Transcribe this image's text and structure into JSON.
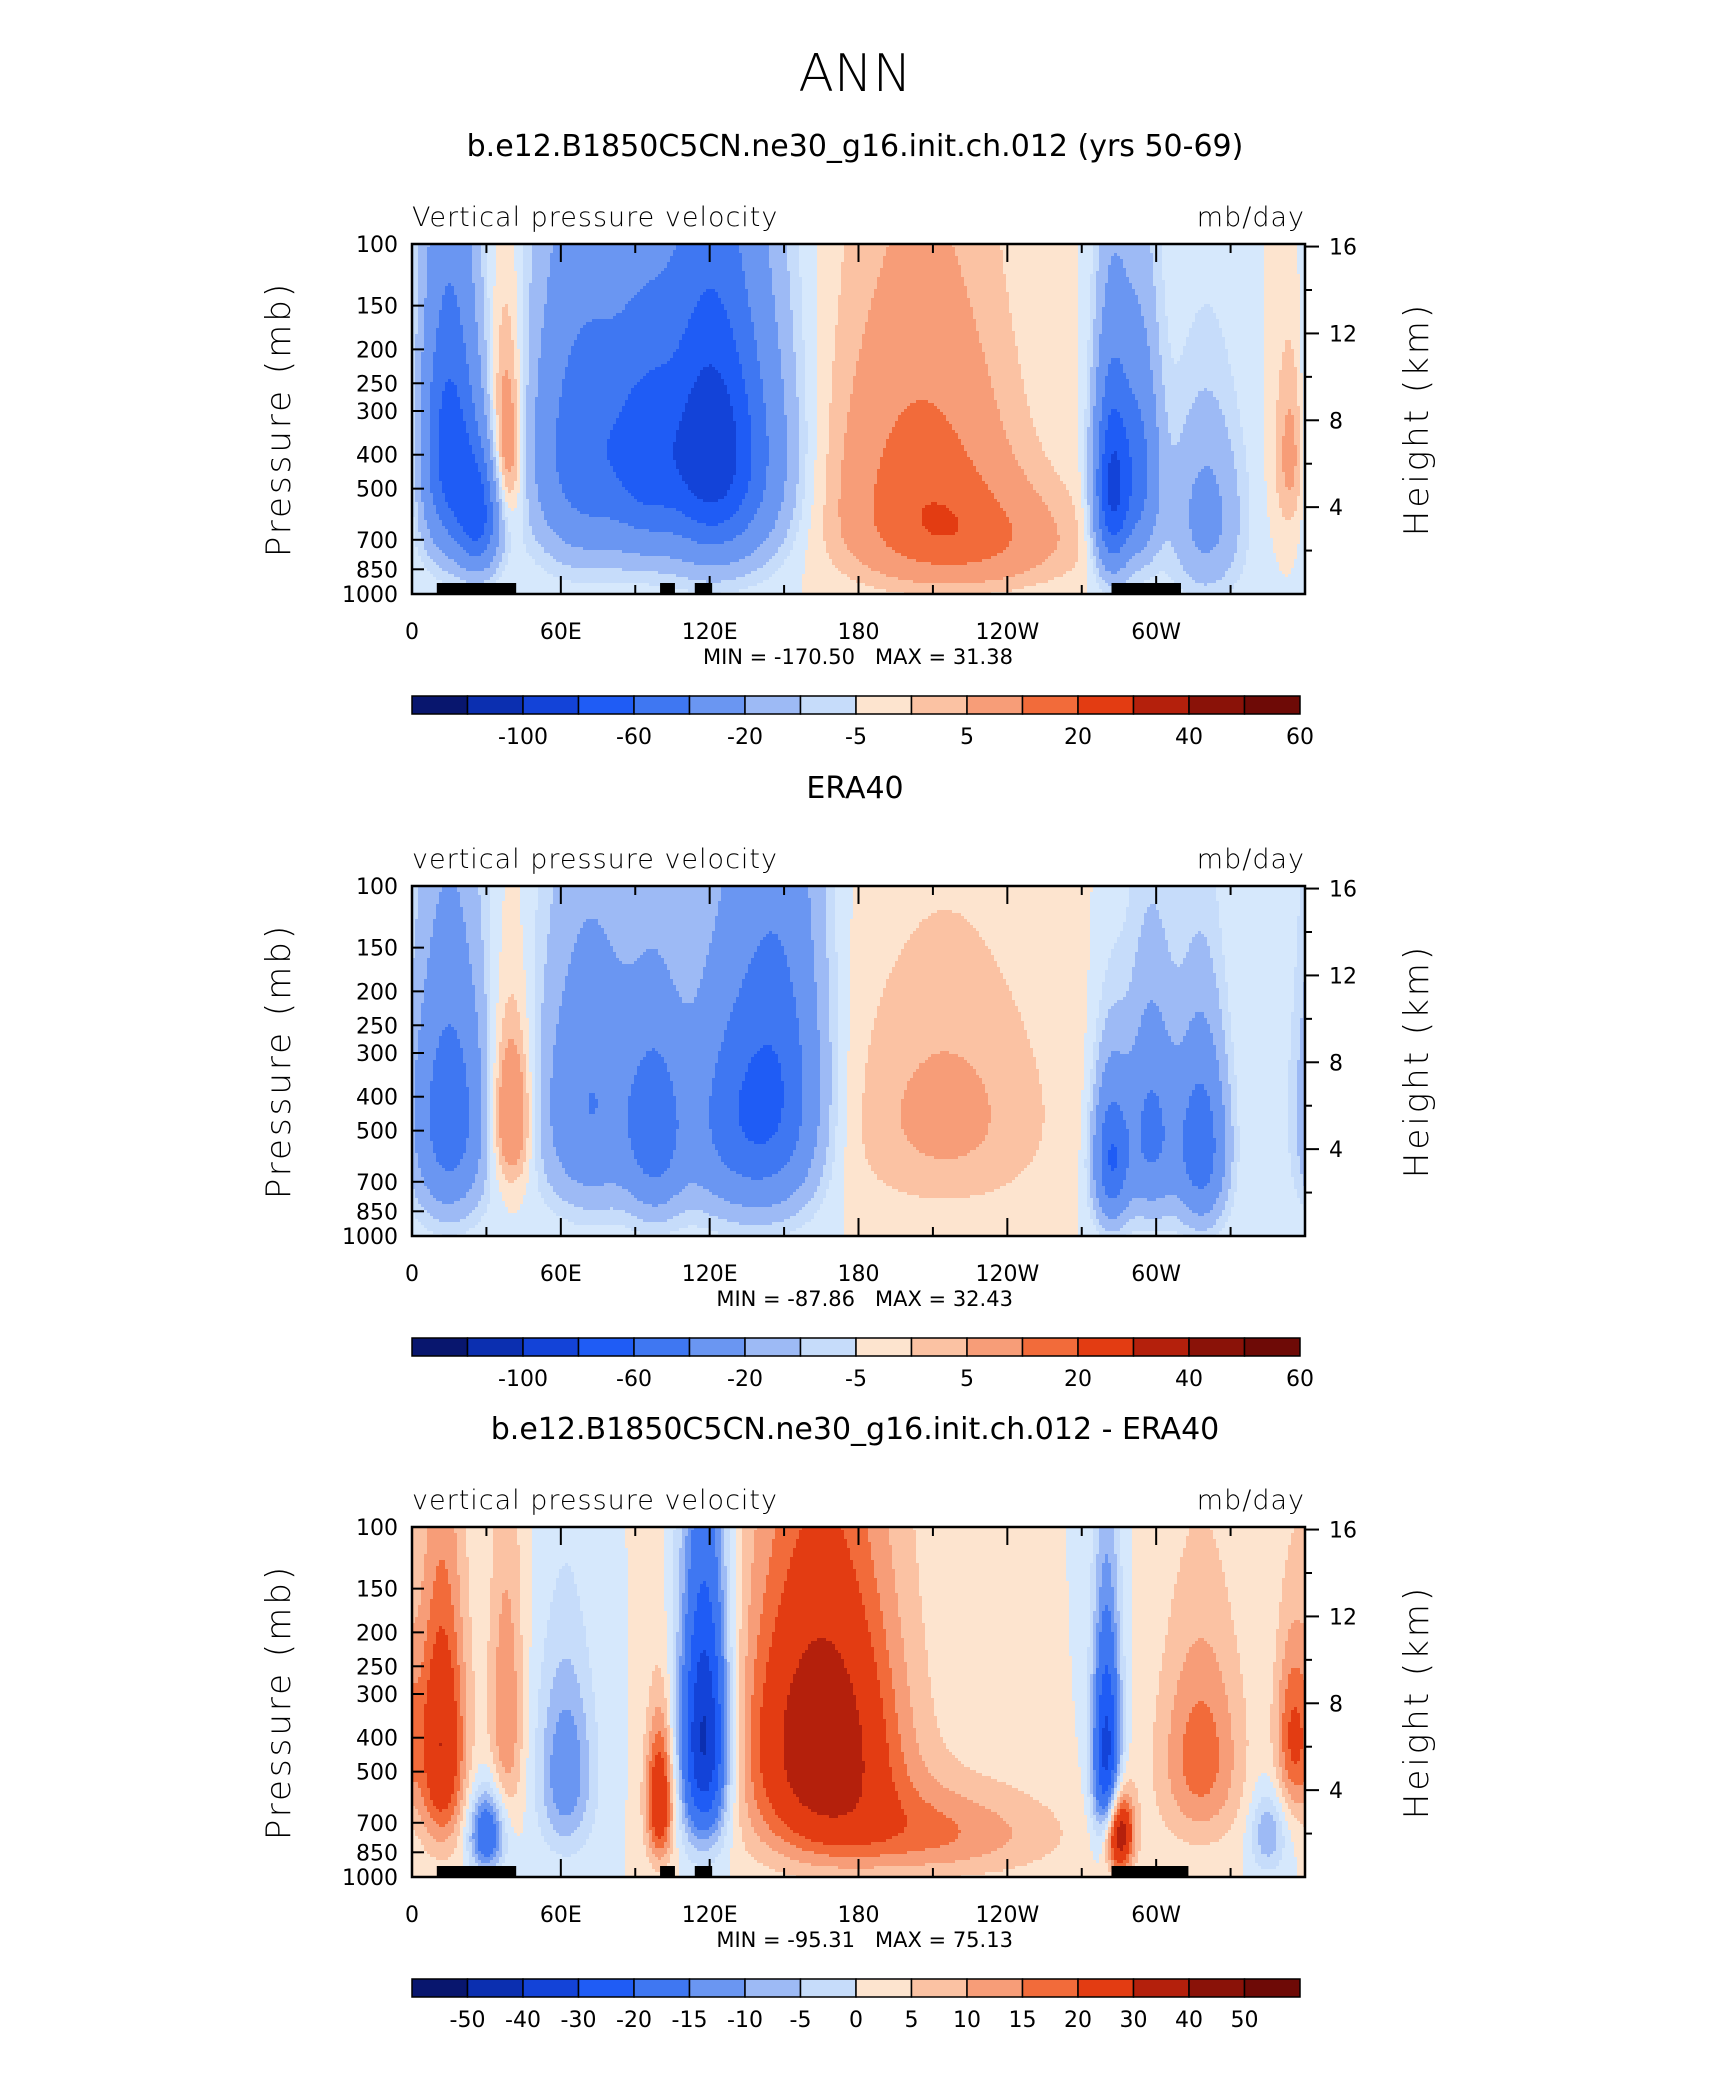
{
  "figure": {
    "title": "ANN"
  },
  "colors": {
    "sign_negative": "#1f5cf5",
    "sign_positive": "#f26b3a",
    "land_mask": "#000000"
  },
  "chart_data": [
    {
      "type": "heatmap",
      "title": "b.e12.B1850C5CN.ne30_g16.init.ch.012 (yrs 50-69)",
      "left_label": "Vertical pressure velocity",
      "right_label": "mb/day",
      "ylabel": "Pressure (mb)",
      "y2label": "Height (km)",
      "x_ticks": [
        "0",
        "60E",
        "120E",
        "180",
        "120W",
        "60W"
      ],
      "x_tick_lons": [
        0,
        60,
        120,
        180,
        240,
        300
      ],
      "xlim": [
        0,
        360
      ],
      "y_ticks": [
        "100",
        "150",
        "200",
        "250",
        "300",
        "400",
        "500",
        "700",
        "850",
        "1000"
      ],
      "y_tick_values": [
        100,
        150,
        200,
        250,
        300,
        400,
        500,
        700,
        850,
        1000
      ],
      "ylim": [
        1000,
        100
      ],
      "y2_ticks": [
        "16",
        "12",
        "8",
        "4"
      ],
      "min_text": "MIN = -170.50",
      "max_text": "MAX = 31.38",
      "colorbar_labels": [
        "-100",
        "-60",
        "-20",
        "-5",
        "5",
        "20",
        "40",
        "60"
      ],
      "colorbar_label_bounds": [
        2,
        4,
        6,
        8,
        10,
        12,
        14,
        16
      ],
      "levels": [
        -120,
        -100,
        -80,
        -60,
        -40,
        -20,
        -10,
        -5,
        0,
        5,
        10,
        20,
        30,
        40,
        50,
        60
      ],
      "colors": [
        "#08166e",
        "#0b2fb0",
        "#1343d8",
        "#1f5cf5",
        "#3f77f2",
        "#6a96f2",
        "#9dbaf5",
        "#c6dcfa",
        "#d6e8fc",
        "#fde4cf",
        "#fbc2a3",
        "#f79d78",
        "#f26b3a",
        "#e33c12",
        "#b4200c",
        "#8a1208",
        "#6e0a06"
      ],
      "features": [
        {
          "lon": 15,
          "p": 380,
          "width": 8,
          "depth": 420,
          "value": -70
        },
        {
          "lon": 27,
          "p": 600,
          "width": 6,
          "depth": 300,
          "value": -60
        },
        {
          "lon": 38,
          "p": 380,
          "width": 5,
          "depth": 300,
          "value": 25
        },
        {
          "lon": 70,
          "p": 380,
          "width": 15,
          "depth": 450,
          "value": -55
        },
        {
          "lon": 95,
          "p": 400,
          "width": 10,
          "depth": 400,
          "value": -50
        },
        {
          "lon": 118,
          "p": 380,
          "width": 12,
          "depth": 450,
          "value": -75
        },
        {
          "lon": 135,
          "p": 400,
          "width": 14,
          "depth": 450,
          "value": -40
        },
        {
          "lon": 205,
          "p": 420,
          "width": 25,
          "depth": 500,
          "value": 22
        },
        {
          "lon": 225,
          "p": 700,
          "width": 30,
          "depth": 300,
          "value": 18
        },
        {
          "lon": 282,
          "p": 500,
          "width": 5,
          "depth": 400,
          "value": -80
        },
        {
          "lon": 293,
          "p": 450,
          "width": 6,
          "depth": 400,
          "value": -45
        },
        {
          "lon": 320,
          "p": 600,
          "width": 10,
          "depth": 450,
          "value": -25
        },
        {
          "lon": 355,
          "p": 400,
          "width": 5,
          "depth": 300,
          "value": 15
        }
      ],
      "land_mask": [
        [
          10,
          30
        ],
        [
          28,
          42
        ],
        [
          100,
          106
        ],
        [
          114,
          121
        ],
        [
          282,
          310
        ]
      ]
    },
    {
      "type": "heatmap",
      "title": "ERA40",
      "left_label": "vertical pressure velocity",
      "right_label": "mb/day",
      "ylabel": "Pressure (mb)",
      "y2label": "Height (km)",
      "x_ticks": [
        "0",
        "60E",
        "120E",
        "180",
        "120W",
        "60W"
      ],
      "x_tick_lons": [
        0,
        60,
        120,
        180,
        240,
        300
      ],
      "xlim": [
        0,
        360
      ],
      "y_ticks": [
        "100",
        "150",
        "200",
        "250",
        "300",
        "400",
        "500",
        "700",
        "850",
        "1000"
      ],
      "y_tick_values": [
        100,
        150,
        200,
        250,
        300,
        400,
        500,
        700,
        850,
        1000
      ],
      "ylim": [
        1000,
        100
      ],
      "y2_ticks": [
        "16",
        "12",
        "8",
        "4"
      ],
      "min_text": "MIN = -87.86",
      "max_text": "MAX = 32.43",
      "colorbar_labels": [
        "-100",
        "-60",
        "-20",
        "-5",
        "5",
        "20",
        "40",
        "60"
      ],
      "colorbar_label_bounds": [
        2,
        4,
        6,
        8,
        10,
        12,
        14,
        16
      ],
      "levels": [
        -120,
        -100,
        -80,
        -60,
        -40,
        -20,
        -10,
        -5,
        0,
        5,
        10,
        20,
        30,
        40,
        50,
        60
      ],
      "colors": [
        "#08166e",
        "#0b2fb0",
        "#1343d8",
        "#1f5cf5",
        "#3f77f2",
        "#6a96f2",
        "#9dbaf5",
        "#c6dcfa",
        "#d6e8fc",
        "#fde4cf",
        "#fbc2a3",
        "#f79d78",
        "#f26b3a",
        "#e33c12",
        "#b4200c",
        "#8a1208",
        "#6e0a06"
      ],
      "features": [
        {
          "lon": 15,
          "p": 450,
          "width": 10,
          "depth": 450,
          "value": -55
        },
        {
          "lon": 40,
          "p": 450,
          "width": 6,
          "depth": 300,
          "value": 25
        },
        {
          "lon": 72,
          "p": 420,
          "width": 14,
          "depth": 450,
          "value": -40
        },
        {
          "lon": 98,
          "p": 500,
          "width": 8,
          "depth": 400,
          "value": -45
        },
        {
          "lon": 132,
          "p": 450,
          "width": 16,
          "depth": 450,
          "value": -50
        },
        {
          "lon": 150,
          "p": 350,
          "width": 12,
          "depth": 500,
          "value": -35
        },
        {
          "lon": 215,
          "p": 450,
          "width": 30,
          "depth": 450,
          "value": 12
        },
        {
          "lon": 282,
          "p": 600,
          "width": 5,
          "depth": 350,
          "value": -60
        },
        {
          "lon": 298,
          "p": 500,
          "width": 7,
          "depth": 400,
          "value": -45
        },
        {
          "lon": 318,
          "p": 550,
          "width": 7,
          "depth": 400,
          "value": -55
        }
      ],
      "land_mask": []
    },
    {
      "type": "heatmap",
      "title": "b.e12.B1850C5CN.ne30_g16.init.ch.012 - ERA40",
      "left_label": "vertical pressure velocity",
      "right_label": "mb/day",
      "ylabel": "Pressure (mb)",
      "y2label": "Height (km)",
      "x_ticks": [
        "0",
        "60E",
        "120E",
        "180",
        "120W",
        "60W"
      ],
      "x_tick_lons": [
        0,
        60,
        120,
        180,
        240,
        300
      ],
      "xlim": [
        0,
        360
      ],
      "y_ticks": [
        "100",
        "150",
        "200",
        "250",
        "300",
        "400",
        "500",
        "700",
        "850",
        "1000"
      ],
      "y_tick_values": [
        100,
        150,
        200,
        250,
        300,
        400,
        500,
        700,
        850,
        1000
      ],
      "ylim": [
        1000,
        100
      ],
      "y2_ticks": [
        "16",
        "12",
        "8",
        "4"
      ],
      "min_text": "MIN = -95.31",
      "max_text": "MAX = 75.13",
      "colorbar_labels": [
        "-50",
        "-40",
        "-30",
        "-20",
        "-15",
        "-10",
        "-5",
        "0",
        "5",
        "10",
        "15",
        "20",
        "30",
        "40",
        "50"
      ],
      "colorbar_label_bounds": [
        1,
        2,
        3,
        4,
        5,
        6,
        7,
        8,
        9,
        10,
        11,
        12,
        13,
        14,
        15
      ],
      "levels": [
        -60,
        -50,
        -40,
        -30,
        -20,
        -15,
        -10,
        -5,
        0,
        5,
        10,
        15,
        20,
        30,
        40,
        50
      ],
      "colors": [
        "#08166e",
        "#0b2fb0",
        "#1343d8",
        "#1f5cf5",
        "#3f77f2",
        "#6a96f2",
        "#9dbaf5",
        "#c6dcfa",
        "#d6e8fc",
        "#fde4cf",
        "#fbc2a3",
        "#f79d78",
        "#f26b3a",
        "#e33c12",
        "#b4200c",
        "#8a1208",
        "#6e0a06"
      ],
      "features": [
        {
          "lon": 12,
          "p": 420,
          "width": 7,
          "depth": 450,
          "value": 30
        },
        {
          "lon": 30,
          "p": 750,
          "width": 5,
          "depth": 250,
          "value": -30
        },
        {
          "lon": 38,
          "p": 350,
          "width": 5,
          "depth": 400,
          "value": 15
        },
        {
          "lon": 62,
          "p": 500,
          "width": 8,
          "depth": 400,
          "value": -20
        },
        {
          "lon": 100,
          "p": 600,
          "width": 4,
          "depth": 350,
          "value": 30
        },
        {
          "lon": 118,
          "p": 400,
          "width": 7,
          "depth": 450,
          "value": -55
        },
        {
          "lon": 165,
          "p": 400,
          "width": 22,
          "depth": 500,
          "value": 38
        },
        {
          "lon": 210,
          "p": 750,
          "width": 35,
          "depth": 300,
          "value": 15
        },
        {
          "lon": 280,
          "p": 450,
          "width": 4,
          "depth": 400,
          "value": -45
        },
        {
          "lon": 285,
          "p": 750,
          "width": 4,
          "depth": 250,
          "value": 40
        },
        {
          "lon": 318,
          "p": 450,
          "width": 12,
          "depth": 400,
          "value": 18
        },
        {
          "lon": 345,
          "p": 750,
          "width": 5,
          "depth": 250,
          "value": -15
        },
        {
          "lon": 355,
          "p": 400,
          "width": 5,
          "depth": 300,
          "value": 20
        }
      ],
      "land_mask": [
        [
          10,
          30
        ],
        [
          28,
          42
        ],
        [
          100,
          106
        ],
        [
          114,
          121
        ],
        [
          282,
          313
        ]
      ]
    }
  ]
}
